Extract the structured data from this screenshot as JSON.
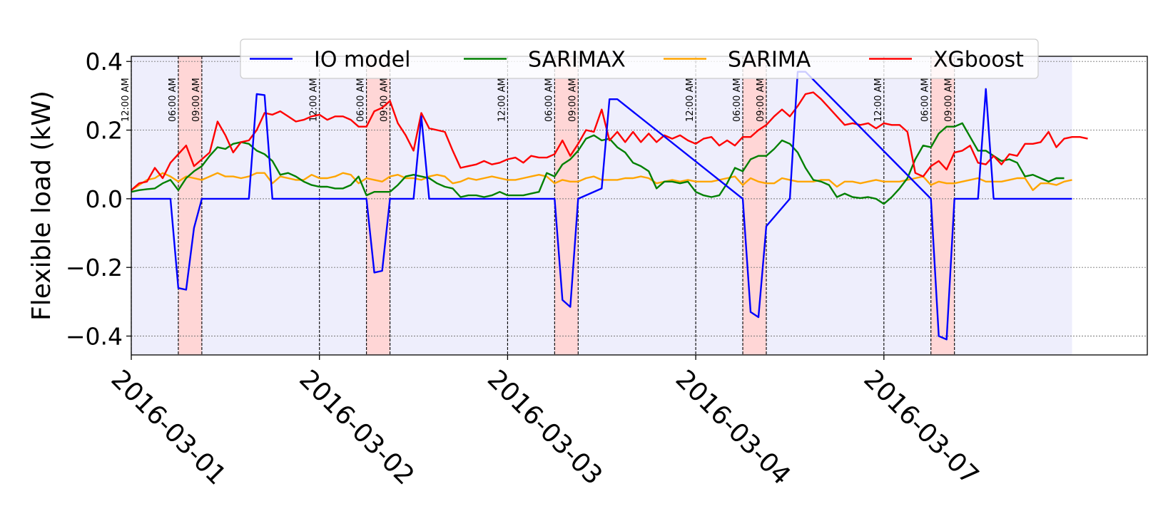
{
  "chart_data": {
    "type": "line",
    "ylabel": "Flexible load (kW)",
    "ylim": [
      -0.455,
      0.415
    ],
    "yticks": [
      -0.4,
      -0.2,
      0.0,
      0.2,
      0.4
    ],
    "ytick_labels": [
      "−0.4",
      "−0.2",
      "0.0",
      "0.2",
      "0.4"
    ],
    "grid": "horizontal dotted",
    "legend_location": "top-center, one row",
    "x_unit": "hours over five weekdays, 24 h per day, gaps removed",
    "xlim": [
      0,
      129.6
    ],
    "days": [
      "2016-03-01",
      "2016-03-02",
      "2016-03-03",
      "2016-03-04",
      "2016-03-07"
    ],
    "day_starts": [
      0,
      24,
      48,
      72,
      96
    ],
    "window_labels": [
      "12:00 AM",
      "06:00 AM",
      "09:00 AM"
    ],
    "window_hours": [
      0,
      6,
      9
    ],
    "x": [
      0,
      3,
      5,
      6,
      7,
      8,
      9,
      15,
      16,
      17,
      18,
      24,
      30,
      31,
      32,
      33,
      36,
      37,
      38,
      54,
      55,
      56,
      57,
      60,
      61,
      62,
      78,
      79,
      80,
      81,
      84,
      85,
      86,
      102,
      103,
      104,
      105,
      108,
      109,
      110,
      119,
      120
    ],
    "series": [
      {
        "name": "IO model",
        "color": "#0000ff",
        "values": [
          0,
          0,
          0,
          -0.26,
          -0.265,
          -0.085,
          0,
          0,
          0.305,
          0.302,
          0,
          0,
          0,
          -0.215,
          -0.21,
          0,
          0,
          0.24,
          0,
          0,
          -0.295,
          -0.315,
          0,
          0.03,
          0.29,
          0.29,
          0,
          -0.33,
          -0.345,
          -0.08,
          0,
          0.37,
          0.37,
          0,
          -0.4,
          -0.41,
          0,
          0,
          0.32,
          0,
          0,
          0
        ]
      }
    ],
    "series_hourly": [
      {
        "name": "SARIMAX",
        "color": "#008000",
        "x_start": 0,
        "x_step": 1,
        "values": [
          0.02,
          0.025,
          0.028,
          0.03,
          0.045,
          0.055,
          0.025,
          0.06,
          0.08,
          0.095,
          0.125,
          0.15,
          0.145,
          0.16,
          0.165,
          0.16,
          0.14,
          0.13,
          0.11,
          0.07,
          0.075,
          0.065,
          0.05,
          0.04,
          0.035,
          0.035,
          0.03,
          0.03,
          0.04,
          0.065,
          0.01,
          0.02,
          0.02,
          0.02,
          0.04,
          0.065,
          0.07,
          0.065,
          0.06,
          0.045,
          0.035,
          0.03,
          0.005,
          0.01,
          0.01,
          0.005,
          0.01,
          0.02,
          0.01,
          0.01,
          0.01,
          0.015,
          0.02,
          0.075,
          0.065,
          0.1,
          0.115,
          0.14,
          0.175,
          0.185,
          0.17,
          0.175,
          0.15,
          0.135,
          0.105,
          0.095,
          0.08,
          0.03,
          0.05,
          0.05,
          0.045,
          0.05,
          0.02,
          0.01,
          0.005,
          0.01,
          0.045,
          0.09,
          0.08,
          0.115,
          0.125,
          0.125,
          0.145,
          0.17,
          0.16,
          0.135,
          0.09,
          0.055,
          0.05,
          0.04,
          0.005,
          0.015,
          0.005,
          0.002,
          0.005,
          0.0,
          -0.015,
          0.005,
          0.03,
          0.06,
          0.115,
          0.155,
          0.15,
          0.19,
          0.21,
          0.21,
          0.22,
          0.18,
          0.14,
          0.14,
          0.125,
          0.11,
          0.115,
          0.105,
          0.065,
          0.07,
          0.06,
          0.05,
          0.06,
          0.06
        ]
      },
      {
        "name": "SARIMA",
        "color": "#ffa500",
        "x_start": 0,
        "x_step": 1,
        "values": [
          0.025,
          0.04,
          0.055,
          0.06,
          0.075,
          0.065,
          0.05,
          0.065,
          0.06,
          0.055,
          0.065,
          0.075,
          0.065,
          0.065,
          0.06,
          0.065,
          0.075,
          0.075,
          0.045,
          0.065,
          0.06,
          0.055,
          0.055,
          0.07,
          0.06,
          0.06,
          0.065,
          0.075,
          0.07,
          0.045,
          0.06,
          0.055,
          0.05,
          0.065,
          0.07,
          0.06,
          0.06,
          0.055,
          0.065,
          0.07,
          0.065,
          0.045,
          0.05,
          0.06,
          0.055,
          0.06,
          0.065,
          0.06,
          0.055,
          0.055,
          0.06,
          0.065,
          0.07,
          0.065,
          0.045,
          0.055,
          0.05,
          0.05,
          0.06,
          0.065,
          0.055,
          0.055,
          0.055,
          0.06,
          0.06,
          0.065,
          0.06,
          0.045,
          0.05,
          0.055,
          0.05,
          0.055,
          0.05,
          0.05,
          0.05,
          0.055,
          0.06,
          0.065,
          0.04,
          0.06,
          0.05,
          0.045,
          0.045,
          0.06,
          0.055,
          0.05,
          0.05,
          0.05,
          0.055,
          0.055,
          0.035,
          0.05,
          0.05,
          0.045,
          0.05,
          0.055,
          0.05,
          0.05,
          0.05,
          0.055,
          0.06,
          0.065,
          0.04,
          0.05,
          0.045,
          0.045,
          0.05,
          0.055,
          0.06,
          0.05,
          0.05,
          0.05,
          0.055,
          0.06,
          0.06,
          0.025,
          0.045,
          0.045,
          0.04,
          0.05,
          0.055
        ]
      },
      {
        "name": "XGboost",
        "color": "#ff0000",
        "x_start": 0,
        "x_step": 1,
        "values": [
          0.025,
          0.045,
          0.05,
          0.09,
          0.06,
          0.105,
          0.13,
          0.155,
          0.095,
          0.115,
          0.135,
          0.225,
          0.185,
          0.135,
          0.165,
          0.17,
          0.2,
          0.25,
          0.245,
          0.255,
          0.24,
          0.225,
          0.23,
          0.24,
          0.245,
          0.23,
          0.24,
          0.24,
          0.23,
          0.21,
          0.21,
          0.255,
          0.265,
          0.285,
          0.22,
          0.185,
          0.14,
          0.25,
          0.205,
          0.2,
          0.195,
          0.14,
          0.09,
          0.095,
          0.1,
          0.11,
          0.1,
          0.105,
          0.115,
          0.12,
          0.105,
          0.125,
          0.12,
          0.12,
          0.13,
          0.17,
          0.125,
          0.16,
          0.2,
          0.195,
          0.26,
          0.17,
          0.195,
          0.165,
          0.195,
          0.165,
          0.19,
          0.165,
          0.185,
          0.175,
          0.185,
          0.17,
          0.16,
          0.175,
          0.18,
          0.155,
          0.17,
          0.155,
          0.18,
          0.18,
          0.2,
          0.215,
          0.24,
          0.26,
          0.24,
          0.27,
          0.305,
          0.31,
          0.29,
          0.265,
          0.24,
          0.215,
          0.22,
          0.215,
          0.22,
          0.205,
          0.22,
          0.215,
          0.215,
          0.195,
          0.075,
          0.065,
          0.095,
          0.11,
          0.085,
          0.135,
          0.14,
          0.155,
          0.105,
          0.1,
          0.125,
          0.1,
          0.13,
          0.125,
          0.16,
          0.16,
          0.165,
          0.195,
          0.15,
          0.175,
          0.18,
          0.18,
          0.175
        ]
      }
    ]
  },
  "legend": [
    {
      "name": "IO model",
      "color": "#0000ff"
    },
    {
      "name": "SARIMAX",
      "color": "#008000"
    },
    {
      "name": "SARIMA",
      "color": "#ffa500"
    },
    {
      "name": "XGboost",
      "color": "#ff0000"
    }
  ],
  "colors": {
    "day_shade": "#e8e8fb",
    "peak_shade": "#ffd6d6",
    "grid": "#777777",
    "axis": "#000000"
  }
}
